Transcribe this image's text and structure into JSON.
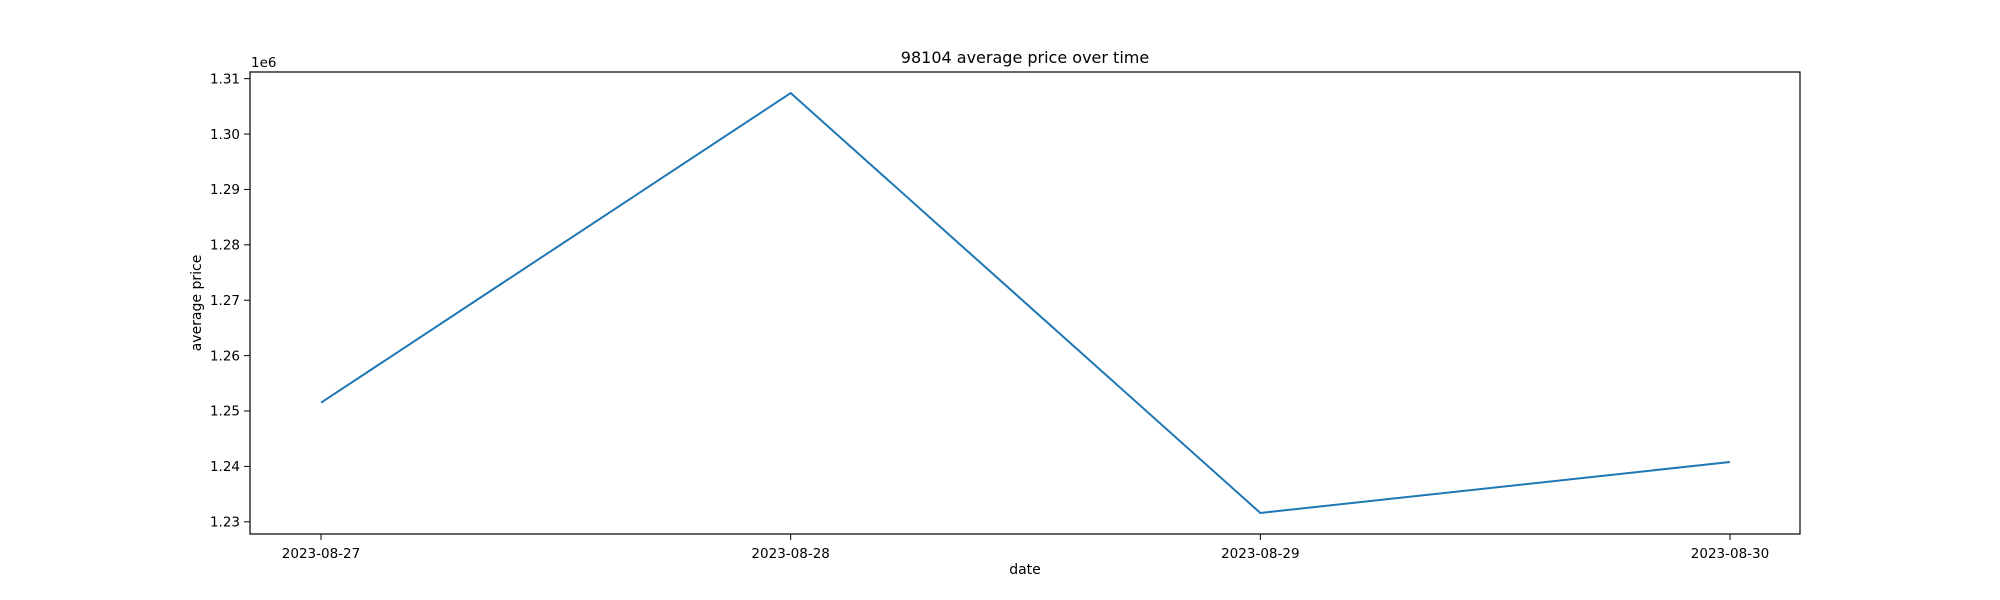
{
  "chart_data": {
    "type": "line",
    "title": "98104 average price over time",
    "xlabel": "date",
    "ylabel": "average price",
    "y_offset_label": "1e6",
    "x": [
      "2023-08-27",
      "2023-08-28",
      "2023-08-29",
      "2023-08-30"
    ],
    "series": [
      {
        "values": [
          1251500,
          1307400,
          1231600,
          1240800
        ],
        "color": "#1f77b4"
      }
    ],
    "y_ticks": [
      1230000,
      1240000,
      1250000,
      1260000,
      1270000,
      1280000,
      1290000,
      1300000,
      1310000
    ],
    "y_tick_labels": [
      "1.23",
      "1.24",
      "1.25",
      "1.26",
      "1.27",
      "1.28",
      "1.29",
      "1.30",
      "1.31"
    ],
    "ylim": [
      1227800,
      1311200
    ],
    "grid": false,
    "legend": "none"
  }
}
